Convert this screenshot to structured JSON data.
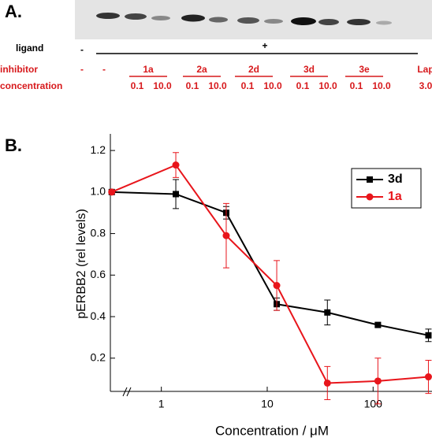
{
  "panel_a": {
    "label": "A.",
    "ligand": {
      "label": "ligand",
      "minus": "-",
      "plus": "+"
    },
    "inhibitor": {
      "label": "inhibitor",
      "values": [
        "-",
        "-",
        "1a",
        "2a",
        "2d",
        "3d",
        "3e",
        "Lap"
      ]
    },
    "concentration": {
      "label": "concentration",
      "values": [
        "0.1",
        "10.0",
        "0.1",
        "10.0",
        "0.1",
        "10.0",
        "0.1",
        "10.0",
        "0.1",
        "10.0",
        "3.0"
      ]
    }
  },
  "panel_b_label": "B.",
  "chart_data": {
    "type": "line",
    "y_label": "pERBB2 (rel levels)",
    "x_label": "Concentration / μM",
    "xscale": "log",
    "xlim": [
      0.33,
      360
    ],
    "xticks": [
      1,
      10,
      100
    ],
    "ylim": [
      0.04,
      1.28
    ],
    "yticks": [
      0.2,
      0.4,
      0.6,
      0.8,
      {
        "value": 1.0,
        "label": "1.0"
      },
      1.2
    ],
    "legend": "upper right",
    "x": [
      0.34,
      1.37,
      4.1,
      12.3,
      37,
      111,
      333
    ],
    "series": [
      {
        "name": "3d",
        "color": "#000000",
        "marker": "square",
        "values": [
          1.0,
          0.99,
          0.9,
          0.46,
          0.42,
          0.36,
          0.31
        ],
        "errors": [
          0,
          0.07,
          0.03,
          0.03,
          0.06,
          0.01,
          0.03
        ]
      },
      {
        "name": "1a",
        "color": "#e8151b",
        "marker": "circle",
        "values": [
          1.0,
          1.13,
          0.79,
          0.55,
          0.08,
          0.09,
          0.11
        ],
        "errors": [
          0,
          0.06,
          0.155,
          0.12,
          0.08,
          0.11,
          0.08
        ]
      }
    ]
  }
}
